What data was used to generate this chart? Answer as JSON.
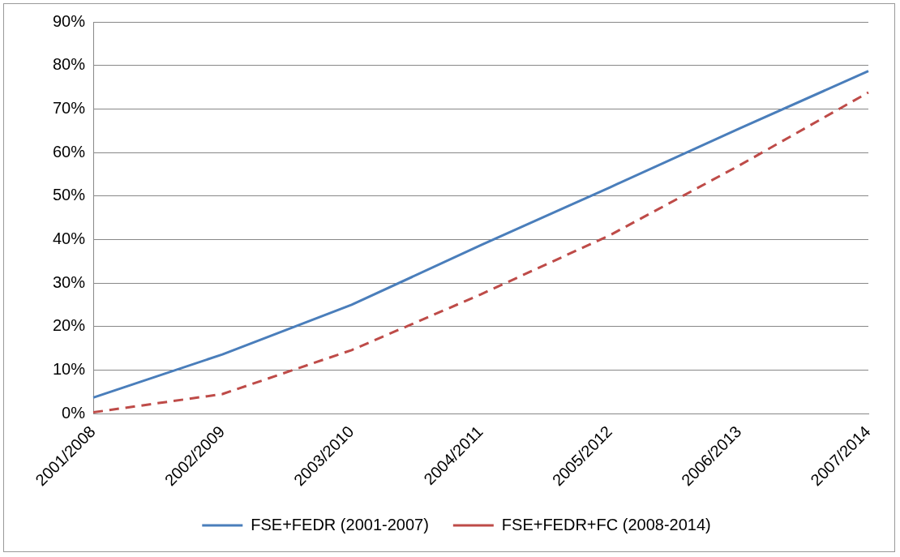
{
  "chart_data": {
    "type": "line",
    "categories": [
      "2001/2008",
      "2002/2009",
      "2003/2010",
      "2004/2011",
      "2005/2012",
      "2006/2013",
      "2007/2014"
    ],
    "series": [
      {
        "name": "FSE+FEDR (2001-2007)",
        "color": "#4a7ebb",
        "line_style": "solid",
        "values": [
          3.7,
          13.6,
          25,
          38.7,
          52,
          65.5,
          78.7
        ]
      },
      {
        "name": "FSE+FEDR+FC (2008-2014)",
        "color": "#be4b48",
        "line_style": "dashed",
        "values": [
          0.3,
          4.5,
          14.6,
          27.4,
          41,
          57,
          73.8
        ]
      }
    ],
    "ylim": [
      0,
      90
    ],
    "yticks": [
      {
        "value": 0,
        "label": "0%"
      },
      {
        "value": 10,
        "label": "10%"
      },
      {
        "value": 20,
        "label": "20%"
      },
      {
        "value": 30,
        "label": "30%"
      },
      {
        "value": 40,
        "label": "40%"
      },
      {
        "value": 50,
        "label": "50%"
      },
      {
        "value": 60,
        "label": "60%"
      },
      {
        "value": 70,
        "label": "70%"
      },
      {
        "value": 80,
        "label": "80%"
      },
      {
        "value": 90,
        "label": "90%"
      }
    ],
    "grid": "y",
    "legend": "bottom",
    "marker": "none"
  }
}
